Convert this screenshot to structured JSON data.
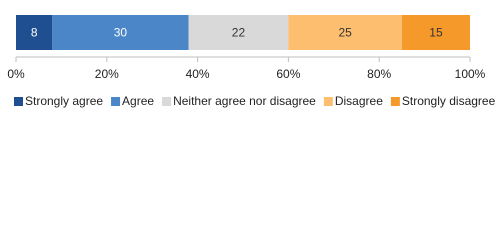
{
  "chart_data": {
    "type": "stacked-bar",
    "orientation": "horizontal",
    "categories": [
      null
    ],
    "series": [
      {
        "name": "Strongly agree",
        "color": "#1f4e91",
        "values": [
          8
        ]
      },
      {
        "name": "Agree",
        "color": "#4a86c8",
        "values": [
          30
        ]
      },
      {
        "name": "Neither agree nor disagree",
        "color": "#d9d9d9",
        "values": [
          22
        ]
      },
      {
        "name": "Disagree",
        "color": "#fdbf6f",
        "values": [
          25
        ]
      },
      {
        "name": "Strongly disagree",
        "color": "#f59a2a",
        "values": [
          15
        ]
      }
    ],
    "xlim": [
      0,
      100
    ],
    "xticks": [
      {
        "value": 0,
        "label": "0%"
      },
      {
        "value": 20,
        "label": "20%"
      },
      {
        "value": 40,
        "label": "40%"
      },
      {
        "value": 60,
        "label": "60%"
      },
      {
        "value": 80,
        "label": "80%"
      },
      {
        "value": 100,
        "label": "100%"
      }
    ],
    "legend": "bottom"
  }
}
